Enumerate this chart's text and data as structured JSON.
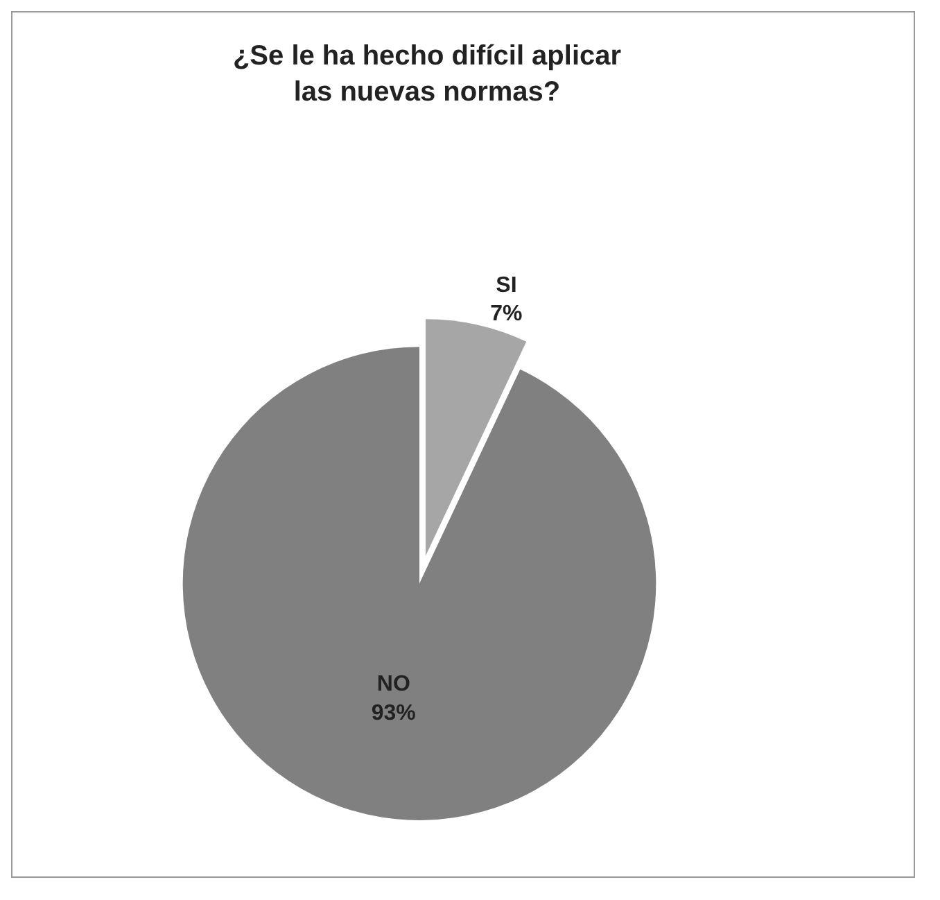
{
  "chart_data": {
    "type": "pie",
    "title": "¿Se le ha hecho difícil aplicar las nuevas normas?",
    "categories": [
      "SI",
      "NO"
    ],
    "values": [
      7,
      93
    ],
    "value_labels": [
      "7%",
      "93%"
    ],
    "colors": [
      "#a6a6a6",
      "#808080"
    ],
    "legend": false
  }
}
